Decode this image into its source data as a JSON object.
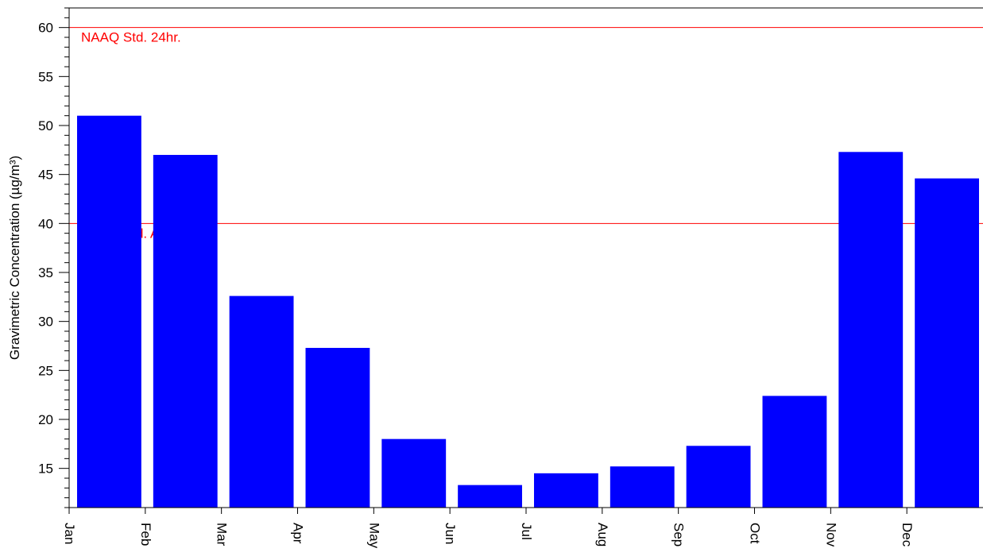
{
  "chart_data": {
    "type": "bar",
    "ylabel": "Gravimetric Concentration  (µg/m³)",
    "xlabel": "",
    "categories": [
      "Jan",
      "Feb",
      "Mar",
      "Apr",
      "May",
      "Jun",
      "Jul",
      "Aug",
      "Sep",
      "Oct",
      "Nov",
      "Dec"
    ],
    "values": [
      51.0,
      47.0,
      32.6,
      27.3,
      18.0,
      13.3,
      14.5,
      15.2,
      17.3,
      22.4,
      47.3,
      44.6
    ],
    "ylim": [
      11,
      62
    ],
    "yticks": [
      15,
      20,
      25,
      30,
      35,
      40,
      45,
      50,
      55,
      60
    ],
    "bar_color": "#0000ff",
    "reference_lines": [
      {
        "label": "NAAQ Std. 24hr.",
        "value": 60,
        "color": "#ff0000"
      },
      {
        "label": "NAAQ Std. Annual",
        "value": 40,
        "color": "#ff0000"
      }
    ],
    "x_tick_orientation": "rotated-90",
    "grid": false,
    "legend": "none"
  }
}
